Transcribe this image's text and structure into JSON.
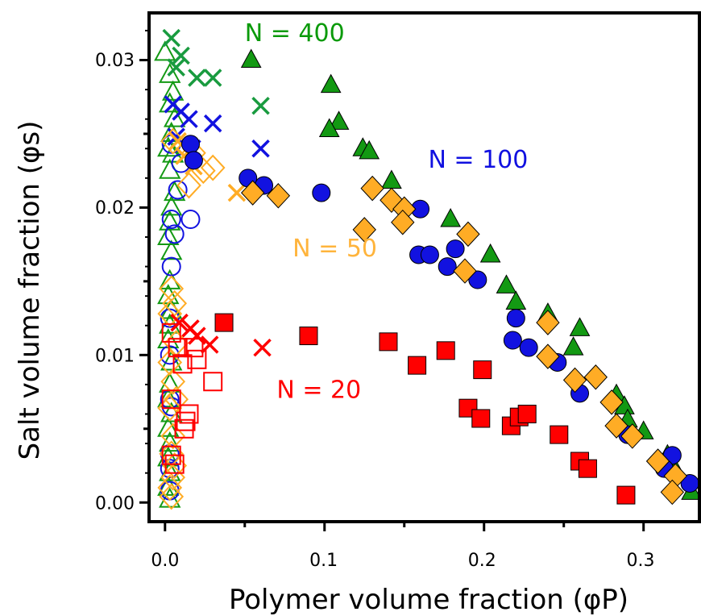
{
  "chart_data": {
    "type": "scatter",
    "xlabel": "Polymer volume fraction (φP)",
    "ylabel": "Salt volume fraction (φs)",
    "xlim": [
      -0.01,
      0.335
    ],
    "ylim": [
      -0.0013,
      0.0332
    ],
    "x_ticks": [
      "0.0",
      "0.1",
      "0.2",
      "0.3"
    ],
    "x_tick_values": [
      0.0,
      0.1,
      0.2,
      0.3
    ],
    "y_ticks": [
      "0.00",
      "0.01",
      "0.02",
      "0.03"
    ],
    "y_tick_values": [
      0.0,
      0.01,
      0.02,
      0.03
    ],
    "grid": false,
    "annotations": [
      {
        "text": "N = 400",
        "x": 0.05,
        "y": 0.0313,
        "color": "#0a9a0a"
      },
      {
        "text": "N = 100",
        "x": 0.165,
        "y": 0.0227,
        "color": "#1010e0"
      },
      {
        "text": "N = 50",
        "x": 0.08,
        "y": 0.0167,
        "color": "#ffb43c"
      },
      {
        "text": "N = 20",
        "x": 0.07,
        "y": 0.0071,
        "color": "#ff0000"
      }
    ],
    "series": [
      {
        "marker": "triangle",
        "color": "#139913",
        "fill": true,
        "points": [
          [
            0.054,
            0.03
          ],
          [
            0.104,
            0.0283
          ],
          [
            0.109,
            0.0258
          ],
          [
            0.103,
            0.0253
          ],
          [
            0.124,
            0.024
          ],
          [
            0.128,
            0.0238
          ],
          [
            0.142,
            0.0218
          ],
          [
            0.179,
            0.0192
          ],
          [
            0.204,
            0.0168
          ],
          [
            0.214,
            0.0147
          ],
          [
            0.22,
            0.0136
          ],
          [
            0.24,
            0.0128
          ],
          [
            0.26,
            0.0118
          ],
          [
            0.256,
            0.0105
          ],
          [
            0.283,
            0.0073
          ],
          [
            0.288,
            0.0065
          ],
          [
            0.29,
            0.0056
          ],
          [
            0.3,
            0.0048
          ],
          [
            0.315,
            0.0032
          ],
          [
            0.32,
            0.0022
          ],
          [
            0.33,
            0.0007
          ]
        ]
      },
      {
        "marker": "triangle",
        "color": "#139913",
        "fill": false,
        "points": [
          [
            0.0,
            0.0305
          ],
          [
            0.003,
            0.029
          ],
          [
            0.005,
            0.0278
          ],
          [
            0.003,
            0.027
          ],
          [
            0.006,
            0.026
          ],
          [
            0.004,
            0.025
          ],
          [
            0.002,
            0.024
          ],
          [
            0.005,
            0.0236
          ],
          [
            0.003,
            0.0225
          ],
          [
            0.006,
            0.021
          ],
          [
            0.004,
            0.02
          ],
          [
            0.003,
            0.019
          ],
          [
            0.002,
            0.018
          ],
          [
            0.004,
            0.017
          ],
          [
            0.003,
            0.015
          ],
          [
            0.002,
            0.014
          ],
          [
            0.004,
            0.013
          ],
          [
            0.003,
            0.012
          ],
          [
            0.002,
            0.011
          ],
          [
            0.004,
            0.0095
          ],
          [
            0.003,
            0.008
          ],
          [
            0.002,
            0.007
          ],
          [
            0.004,
            0.006
          ],
          [
            0.002,
            0.005
          ],
          [
            0.003,
            0.004
          ],
          [
            0.002,
            0.003
          ],
          [
            0.003,
            0.002
          ],
          [
            0.002,
            0.001
          ],
          [
            0.003,
            0.0002
          ]
        ]
      },
      {
        "marker": "cross",
        "color": "#199b3f",
        "points": [
          [
            0.004,
            0.0315
          ],
          [
            0.01,
            0.0303
          ],
          [
            0.007,
            0.0295
          ],
          [
            0.02,
            0.0288
          ],
          [
            0.03,
            0.0288
          ],
          [
            0.06,
            0.0269
          ]
        ]
      },
      {
        "marker": "circle",
        "color": "#1212e0",
        "fill": true,
        "points": [
          [
            0.016,
            0.0243
          ],
          [
            0.018,
            0.0232
          ],
          [
            0.052,
            0.022
          ],
          [
            0.062,
            0.0215
          ],
          [
            0.098,
            0.021
          ],
          [
            0.16,
            0.0199
          ],
          [
            0.159,
            0.0168
          ],
          [
            0.166,
            0.0168
          ],
          [
            0.177,
            0.016
          ],
          [
            0.182,
            0.0172
          ],
          [
            0.196,
            0.0151
          ],
          [
            0.22,
            0.0125
          ],
          [
            0.218,
            0.011
          ],
          [
            0.228,
            0.0105
          ],
          [
            0.246,
            0.0095
          ],
          [
            0.26,
            0.0074
          ],
          [
            0.29,
            0.0046
          ],
          [
            0.318,
            0.0032
          ],
          [
            0.313,
            0.0023
          ],
          [
            0.329,
            0.0013
          ]
        ]
      },
      {
        "marker": "circle",
        "color": "#1212e0",
        "fill": false,
        "points": [
          [
            0.004,
            0.0243
          ],
          [
            0.01,
            0.023
          ],
          [
            0.008,
            0.0212
          ],
          [
            0.016,
            0.0192
          ],
          [
            0.004,
            0.0192
          ],
          [
            0.006,
            0.0182
          ],
          [
            0.004,
            0.016
          ],
          [
            0.003,
            0.0125
          ],
          [
            0.003,
            0.01
          ],
          [
            0.003,
            0.007
          ],
          [
            0.004,
            0.0065
          ],
          [
            0.003,
            0.0033
          ],
          [
            0.003,
            0.0023
          ],
          [
            0.003,
            0.0008
          ]
        ]
      },
      {
        "marker": "cross",
        "color": "#1212e0",
        "points": [
          [
            0.005,
            0.027
          ],
          [
            0.01,
            0.0265
          ],
          [
            0.015,
            0.026
          ],
          [
            0.03,
            0.0257
          ],
          [
            0.06,
            0.024
          ],
          [
            0.007,
            0.0248
          ],
          [
            0.017,
            0.024
          ]
        ]
      },
      {
        "marker": "diamond",
        "color": "#ffac25",
        "fill": true,
        "points": [
          [
            0.055,
            0.021
          ],
          [
            0.071,
            0.0208
          ],
          [
            0.13,
            0.0213
          ],
          [
            0.142,
            0.0205
          ],
          [
            0.15,
            0.0199
          ],
          [
            0.125,
            0.0185
          ],
          [
            0.149,
            0.019
          ],
          [
            0.19,
            0.0182
          ],
          [
            0.188,
            0.0157
          ],
          [
            0.24,
            0.0122
          ],
          [
            0.24,
            0.0099
          ],
          [
            0.257,
            0.0083
          ],
          [
            0.27,
            0.0085
          ],
          [
            0.28,
            0.0068
          ],
          [
            0.283,
            0.0052
          ],
          [
            0.293,
            0.0045
          ],
          [
            0.309,
            0.0028
          ],
          [
            0.32,
            0.0018
          ],
          [
            0.318,
            0.0007
          ]
        ]
      },
      {
        "marker": "diamond",
        "color": "#ffac25",
        "fill": false,
        "points": [
          [
            0.005,
            0.0245
          ],
          [
            0.018,
            0.0237
          ],
          [
            0.024,
            0.0225
          ],
          [
            0.03,
            0.0227
          ],
          [
            0.015,
            0.0215
          ],
          [
            0.004,
            0.0145
          ],
          [
            0.006,
            0.0135
          ],
          [
            0.003,
            0.0128
          ],
          [
            0.007,
            0.0108
          ],
          [
            0.003,
            0.0095
          ],
          [
            0.005,
            0.0082
          ],
          [
            0.007,
            0.007
          ],
          [
            0.003,
            0.0064
          ],
          [
            0.005,
            0.0045
          ],
          [
            0.004,
            0.0033
          ],
          [
            0.006,
            0.0025
          ],
          [
            0.005,
            0.0017
          ],
          [
            0.003,
            0.001
          ],
          [
            0.004,
            0.0004
          ]
        ]
      },
      {
        "marker": "cross",
        "color": "#ffac25",
        "points": [
          [
            0.008,
            0.0245
          ],
          [
            0.012,
            0.0235
          ],
          [
            0.018,
            0.0228
          ],
          [
            0.045,
            0.021
          ]
        ]
      },
      {
        "marker": "square",
        "color": "#ff0000",
        "fill": true,
        "points": [
          [
            0.037,
            0.0122
          ],
          [
            0.09,
            0.0113
          ],
          [
            0.14,
            0.0109
          ],
          [
            0.176,
            0.0103
          ],
          [
            0.158,
            0.0093
          ],
          [
            0.199,
            0.009
          ],
          [
            0.19,
            0.0064
          ],
          [
            0.198,
            0.0057
          ],
          [
            0.217,
            0.0052
          ],
          [
            0.222,
            0.0058
          ],
          [
            0.227,
            0.006
          ],
          [
            0.247,
            0.0046
          ],
          [
            0.26,
            0.0028
          ],
          [
            0.265,
            0.0023
          ],
          [
            0.289,
            0.0005
          ]
        ]
      },
      {
        "marker": "square",
        "color": "#ff0000",
        "fill": false,
        "points": [
          [
            0.004,
            0.0115
          ],
          [
            0.008,
            0.0105
          ],
          [
            0.018,
            0.0105
          ],
          [
            0.02,
            0.0097
          ],
          [
            0.011,
            0.0094
          ],
          [
            0.03,
            0.0082
          ],
          [
            0.004,
            0.007
          ],
          [
            0.015,
            0.006
          ],
          [
            0.013,
            0.0055
          ],
          [
            0.012,
            0.005
          ],
          [
            0.004,
            0.0032
          ],
          [
            0.006,
            0.0026
          ]
        ]
      },
      {
        "marker": "cross",
        "color": "#ff0000",
        "points": [
          [
            0.009,
            0.0122
          ],
          [
            0.016,
            0.0118
          ],
          [
            0.02,
            0.0113
          ],
          [
            0.028,
            0.0107
          ],
          [
            0.061,
            0.0105
          ]
        ]
      }
    ]
  }
}
